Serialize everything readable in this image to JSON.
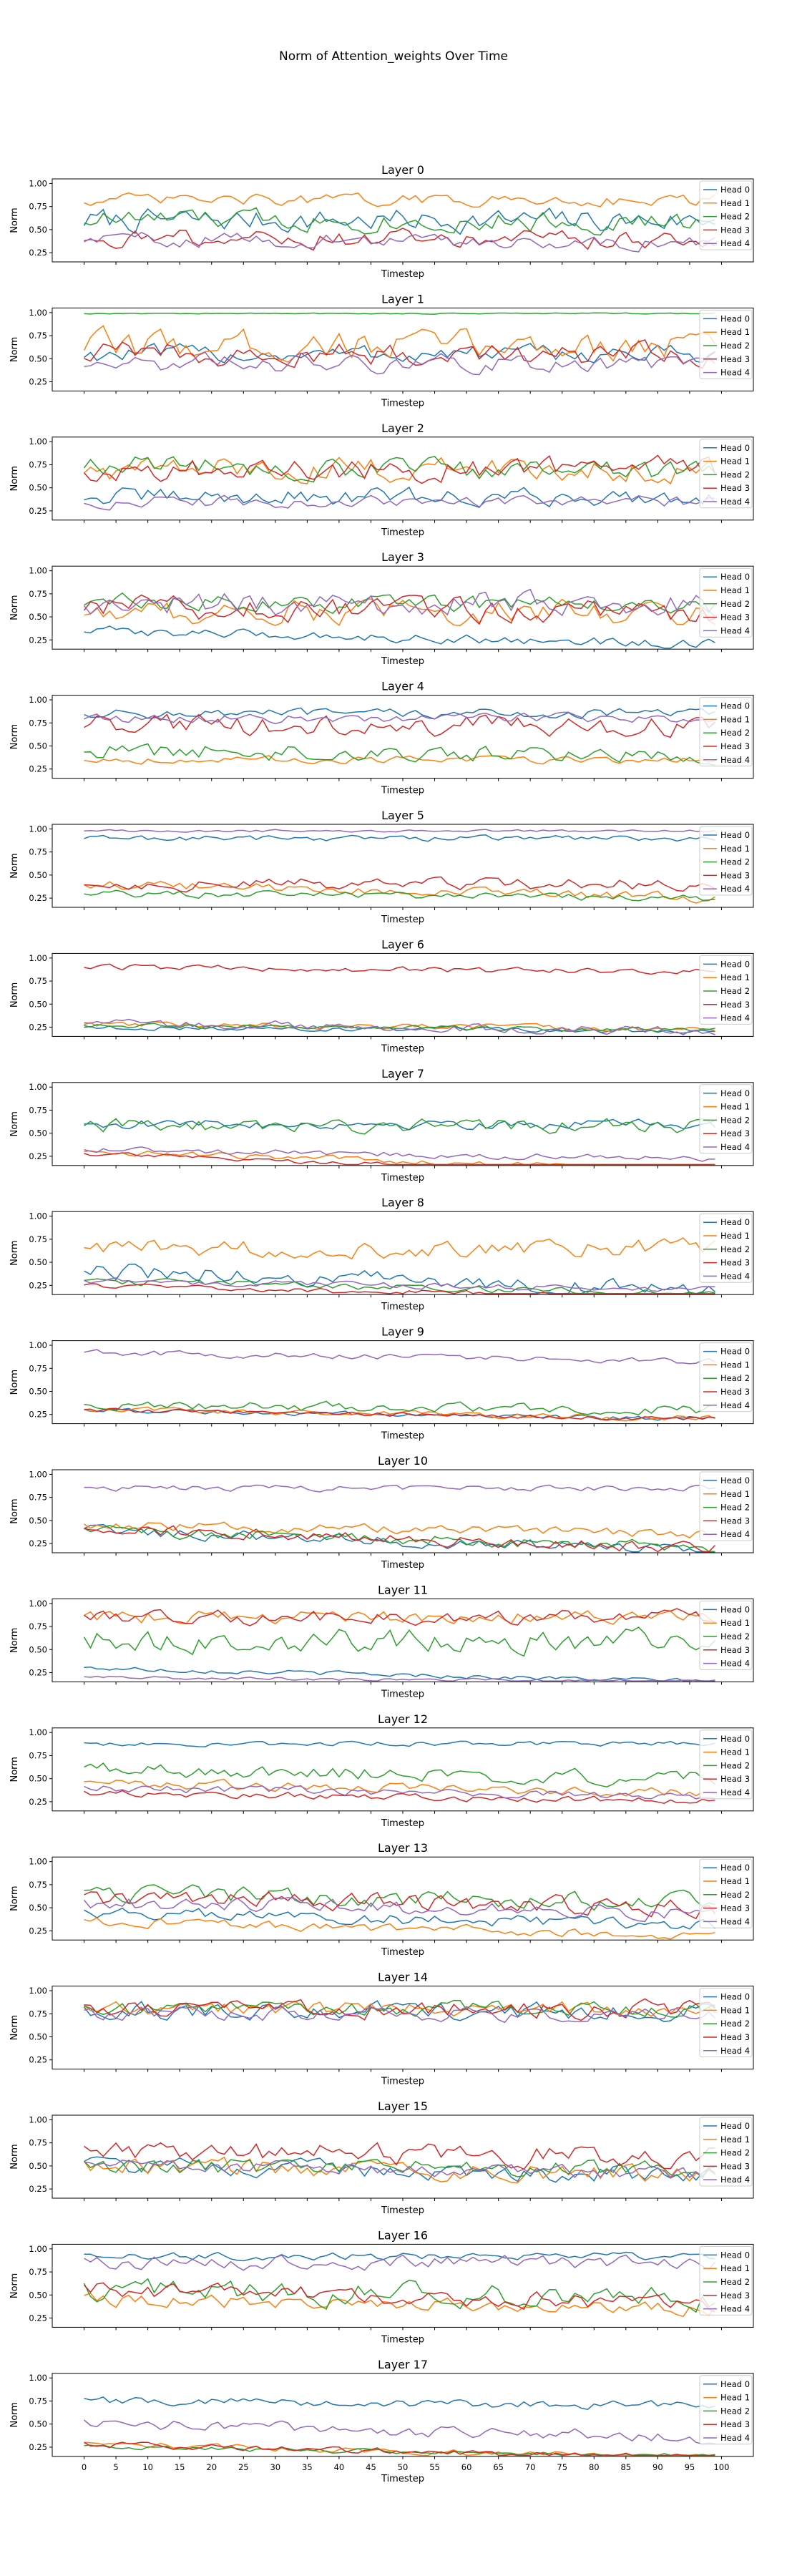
{
  "figure_title": "Norm of Attention_weights Over Time",
  "xlabel": "Timestep",
  "ylabel": "Norm",
  "x_ticks": [
    0,
    5,
    10,
    15,
    20,
    25,
    30,
    35,
    40,
    45,
    50,
    55,
    60,
    65,
    70,
    75,
    80,
    85,
    90,
    95,
    100
  ],
  "y_ticks": [
    "0.25",
    "0.50",
    "0.75",
    "1.00"
  ],
  "legend_labels": [
    "Head 0",
    "Head 1",
    "Head 2",
    "Head 3",
    "Head 4"
  ],
  "colors": [
    "#1f77b4",
    "#ff7f0e",
    "#2ca02c",
    "#d62728",
    "#9467bd"
  ],
  "chart_data": {
    "type": "line",
    "x": [
      0,
      1,
      2,
      3,
      4,
      5,
      6,
      7,
      8,
      9,
      10,
      11,
      12,
      13,
      14,
      15,
      16,
      17,
      18,
      19,
      20,
      21,
      22,
      23,
      24,
      25,
      26,
      27,
      28,
      29,
      30,
      31,
      32,
      33,
      34,
      35,
      36,
      37,
      38,
      39,
      40,
      41,
      42,
      43,
      44,
      45,
      46,
      47,
      48,
      49,
      50,
      51,
      52,
      53,
      54,
      55,
      56,
      57,
      58,
      59,
      60,
      61,
      62,
      63,
      64,
      65,
      66,
      67,
      68,
      69,
      70,
      71,
      72,
      73,
      74,
      75,
      76,
      77,
      78,
      79,
      80,
      81,
      82,
      83,
      84,
      85,
      86,
      87,
      88,
      89,
      90,
      91,
      92,
      93,
      94,
      95,
      96,
      97,
      98,
      99
    ],
    "xlim": [
      -5,
      105
    ],
    "ylim": [
      0.15,
      1.05
    ],
    "panels": [
      {
        "title": "Layer 0",
        "series": [
          {
            "name": "Head 0",
            "center": 0.6,
            "amp": 0.2,
            "trend": 0
          },
          {
            "name": "Head 1",
            "center": 0.82,
            "amp": 0.1,
            "trend": 0
          },
          {
            "name": "Head 2",
            "center": 0.62,
            "amp": 0.18,
            "trend": -0.05
          },
          {
            "name": "Head 3",
            "center": 0.42,
            "amp": 0.15,
            "trend": -0.05
          },
          {
            "name": "Head 4",
            "center": 0.4,
            "amp": 0.12,
            "trend": -0.05
          }
        ]
      },
      {
        "title": "Layer 1",
        "series": [
          {
            "name": "Head 0",
            "center": 0.55,
            "amp": 0.15,
            "trend": 0
          },
          {
            "name": "Head 1",
            "center": 0.65,
            "amp": 0.25,
            "trend": 0
          },
          {
            "name": "Head 2",
            "center": 0.99,
            "amp": 0.01,
            "trend": 0
          },
          {
            "name": "Head 3",
            "center": 0.55,
            "amp": 0.2,
            "trend": 0
          },
          {
            "name": "Head 4",
            "center": 0.45,
            "amp": 0.15,
            "trend": 0
          }
        ]
      },
      {
        "title": "Layer 2",
        "series": [
          {
            "name": "Head 0",
            "center": 0.4,
            "amp": 0.15,
            "trend": 0
          },
          {
            "name": "Head 1",
            "center": 0.7,
            "amp": 0.2,
            "trend": 0
          },
          {
            "name": "Head 2",
            "center": 0.75,
            "amp": 0.18,
            "trend": -0.1
          },
          {
            "name": "Head 3",
            "center": 0.7,
            "amp": 0.2,
            "trend": 0
          },
          {
            "name": "Head 4",
            "center": 0.35,
            "amp": 0.1,
            "trend": 0
          }
        ]
      },
      {
        "title": "Layer 3",
        "series": [
          {
            "name": "Head 0",
            "center": 0.35,
            "amp": 0.08,
            "trend": -0.15
          },
          {
            "name": "Head 1",
            "center": 0.55,
            "amp": 0.2,
            "trend": 0
          },
          {
            "name": "Head 2",
            "center": 0.65,
            "amp": 0.15,
            "trend": 0
          },
          {
            "name": "Head 3",
            "center": 0.6,
            "amp": 0.2,
            "trend": -0.05
          },
          {
            "name": "Head 4",
            "center": 0.65,
            "amp": 0.2,
            "trend": 0
          }
        ]
      },
      {
        "title": "Layer 4",
        "series": [
          {
            "name": "Head 0",
            "center": 0.85,
            "amp": 0.08,
            "trend": 0
          },
          {
            "name": "Head 1",
            "center": 0.35,
            "amp": 0.06,
            "trend": 0
          },
          {
            "name": "Head 2",
            "center": 0.45,
            "amp": 0.15,
            "trend": -0.05
          },
          {
            "name": "Head 3",
            "center": 0.72,
            "amp": 0.18,
            "trend": 0
          },
          {
            "name": "Head 4",
            "center": 0.8,
            "amp": 0.08,
            "trend": 0
          }
        ]
      },
      {
        "title": "Layer 5",
        "series": [
          {
            "name": "Head 0",
            "center": 0.9,
            "amp": 0.05,
            "trend": 0
          },
          {
            "name": "Head 1",
            "center": 0.4,
            "amp": 0.08,
            "trend": -0.15
          },
          {
            "name": "Head 2",
            "center": 0.3,
            "amp": 0.06,
            "trend": -0.05
          },
          {
            "name": "Head 3",
            "center": 0.4,
            "amp": 0.1,
            "trend": 0
          },
          {
            "name": "Head 4",
            "center": 0.98,
            "amp": 0.02,
            "trend": 0
          }
        ]
      },
      {
        "title": "Layer 6",
        "series": [
          {
            "name": "Head 0",
            "center": 0.25,
            "amp": 0.04,
            "trend": -0.05
          },
          {
            "name": "Head 1",
            "center": 0.28,
            "amp": 0.05,
            "trend": -0.05
          },
          {
            "name": "Head 2",
            "center": 0.27,
            "amp": 0.04,
            "trend": -0.05
          },
          {
            "name": "Head 3",
            "center": 0.9,
            "amp": 0.05,
            "trend": -0.05
          },
          {
            "name": "Head 4",
            "center": 0.3,
            "amp": 0.07,
            "trend": -0.1
          }
        ]
      },
      {
        "title": "Layer 7",
        "series": [
          {
            "name": "Head 0",
            "center": 0.6,
            "amp": 0.08,
            "trend": 0
          },
          {
            "name": "Head 1",
            "center": 0.3,
            "amp": 0.05,
            "trend": -0.2
          },
          {
            "name": "Head 2",
            "center": 0.58,
            "amp": 0.12,
            "trend": 0
          },
          {
            "name": "Head 3",
            "center": 0.28,
            "amp": 0.04,
            "trend": -0.25
          },
          {
            "name": "Head 4",
            "center": 0.32,
            "amp": 0.05,
            "trend": -0.1
          }
        ]
      },
      {
        "title": "Layer 8",
        "series": [
          {
            "name": "Head 0",
            "center": 0.4,
            "amp": 0.15,
            "trend": -0.2
          },
          {
            "name": "Head 1",
            "center": 0.65,
            "amp": 0.15,
            "trend": 0
          },
          {
            "name": "Head 2",
            "center": 0.3,
            "amp": 0.06,
            "trend": -0.15
          },
          {
            "name": "Head 3",
            "center": 0.25,
            "amp": 0.05,
            "trend": -0.15
          },
          {
            "name": "Head 4",
            "center": 0.3,
            "amp": 0.05,
            "trend": -0.1
          }
        ]
      },
      {
        "title": "Layer 9",
        "series": [
          {
            "name": "Head 0",
            "center": 0.3,
            "amp": 0.04,
            "trend": -0.1
          },
          {
            "name": "Head 1",
            "center": 0.3,
            "amp": 0.05,
            "trend": -0.1
          },
          {
            "name": "Head 2",
            "center": 0.35,
            "amp": 0.08,
            "trend": -0.05
          },
          {
            "name": "Head 3",
            "center": 0.3,
            "amp": 0.04,
            "trend": -0.1
          },
          {
            "name": "Head 4",
            "center": 0.92,
            "amp": 0.05,
            "trend": -0.1
          }
        ]
      },
      {
        "title": "Layer 10",
        "series": [
          {
            "name": "Head 0",
            "center": 0.4,
            "amp": 0.1,
            "trend": -0.25
          },
          {
            "name": "Head 1",
            "center": 0.45,
            "amp": 0.08,
            "trend": -0.1
          },
          {
            "name": "Head 2",
            "center": 0.4,
            "amp": 0.1,
            "trend": -0.2
          },
          {
            "name": "Head 3",
            "center": 0.4,
            "amp": 0.1,
            "trend": -0.2
          },
          {
            "name": "Head 4",
            "center": 0.85,
            "amp": 0.05,
            "trend": 0
          }
        ]
      },
      {
        "title": "Layer 11",
        "series": [
          {
            "name": "Head 0",
            "center": 0.3,
            "amp": 0.04,
            "trend": -0.15
          },
          {
            "name": "Head 1",
            "center": 0.85,
            "amp": 0.12,
            "trend": 0
          },
          {
            "name": "Head 2",
            "center": 0.6,
            "amp": 0.2,
            "trend": 0
          },
          {
            "name": "Head 3",
            "center": 0.85,
            "amp": 0.12,
            "trend": 0
          },
          {
            "name": "Head 4",
            "center": 0.2,
            "amp": 0.03,
            "trend": -0.05
          }
        ]
      },
      {
        "title": "Layer 12",
        "series": [
          {
            "name": "Head 0",
            "center": 0.88,
            "amp": 0.04,
            "trend": 0
          },
          {
            "name": "Head 1",
            "center": 0.45,
            "amp": 0.08,
            "trend": -0.1
          },
          {
            "name": "Head 2",
            "center": 0.6,
            "amp": 0.12,
            "trend": -0.1
          },
          {
            "name": "Head 3",
            "center": 0.35,
            "amp": 0.06,
            "trend": -0.1
          },
          {
            "name": "Head 4",
            "center": 0.4,
            "amp": 0.07,
            "trend": -0.1
          }
        ]
      },
      {
        "title": "Layer 13",
        "series": [
          {
            "name": "Head 0",
            "center": 0.45,
            "amp": 0.1,
            "trend": -0.15
          },
          {
            "name": "Head 1",
            "center": 0.35,
            "amp": 0.08,
            "trend": -0.15
          },
          {
            "name": "Head 2",
            "center": 0.65,
            "amp": 0.15,
            "trend": -0.1
          },
          {
            "name": "Head 3",
            "center": 0.6,
            "amp": 0.15,
            "trend": -0.1
          },
          {
            "name": "Head 4",
            "center": 0.55,
            "amp": 0.12,
            "trend": -0.1
          }
        ]
      },
      {
        "title": "Layer 14",
        "series": [
          {
            "name": "Head 0",
            "center": 0.78,
            "amp": 0.15,
            "trend": 0
          },
          {
            "name": "Head 1",
            "center": 0.8,
            "amp": 0.12,
            "trend": 0
          },
          {
            "name": "Head 2",
            "center": 0.8,
            "amp": 0.12,
            "trend": 0
          },
          {
            "name": "Head 3",
            "center": 0.8,
            "amp": 0.15,
            "trend": 0
          },
          {
            "name": "Head 4",
            "center": 0.75,
            "amp": 0.12,
            "trend": 0
          }
        ]
      },
      {
        "title": "Layer 15",
        "series": [
          {
            "name": "Head 0",
            "center": 0.5,
            "amp": 0.15,
            "trend": -0.1
          },
          {
            "name": "Head 1",
            "center": 0.5,
            "amp": 0.15,
            "trend": -0.1
          },
          {
            "name": "Head 2",
            "center": 0.5,
            "amp": 0.15,
            "trend": -0.05
          },
          {
            "name": "Head 3",
            "center": 0.65,
            "amp": 0.18,
            "trend": -0.05
          },
          {
            "name": "Head 4",
            "center": 0.5,
            "amp": 0.12,
            "trend": -0.1
          }
        ]
      },
      {
        "title": "Layer 16",
        "series": [
          {
            "name": "Head 0",
            "center": 0.92,
            "amp": 0.06,
            "trend": 0
          },
          {
            "name": "Head 1",
            "center": 0.45,
            "amp": 0.12,
            "trend": -0.1
          },
          {
            "name": "Head 2",
            "center": 0.55,
            "amp": 0.2,
            "trend": -0.1
          },
          {
            "name": "Head 3",
            "center": 0.55,
            "amp": 0.15,
            "trend": -0.15
          },
          {
            "name": "Head 4",
            "center": 0.85,
            "amp": 0.12,
            "trend": 0
          }
        ]
      },
      {
        "title": "Layer 17",
        "series": [
          {
            "name": "Head 0",
            "center": 0.75,
            "amp": 0.07,
            "trend": -0.05
          },
          {
            "name": "Head 1",
            "center": 0.28,
            "amp": 0.05,
            "trend": -0.15
          },
          {
            "name": "Head 2",
            "center": 0.25,
            "amp": 0.04,
            "trend": -0.1
          },
          {
            "name": "Head 3",
            "center": 0.28,
            "amp": 0.05,
            "trend": -0.15
          },
          {
            "name": "Head 4",
            "center": 0.5,
            "amp": 0.1,
            "trend": -0.15
          }
        ]
      }
    ]
  }
}
